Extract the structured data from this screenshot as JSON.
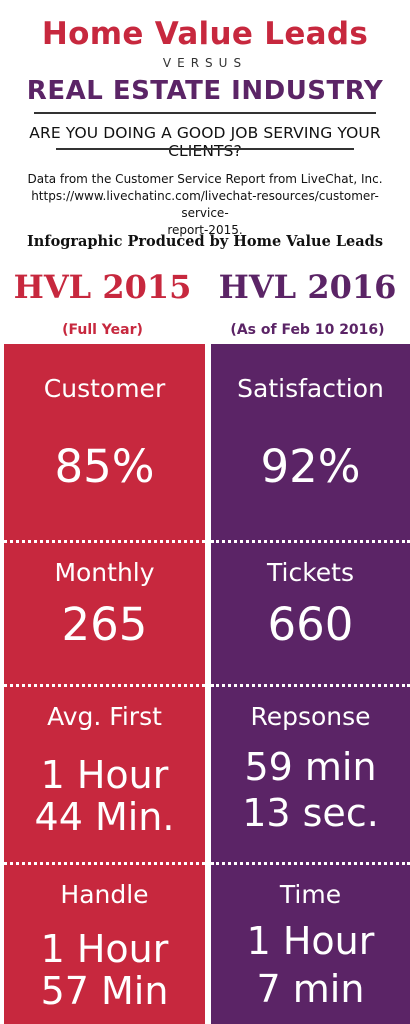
{
  "header": {
    "title": "Home Value Leads",
    "versus": "VERSUS",
    "subtitle": "REAL ESTATE INDUSTRY",
    "question": "ARE YOU DOING A GOOD JOB SERVING YOUR CLIENTS?",
    "source_line1": "Data from the Customer Service Report from LiveChat, Inc.",
    "source_line2": "https://www.livechatinc.com/livechat-resources/customer-service-",
    "source_line3": "report-2015.",
    "producer": "Infographic Produced by Home Value Leads"
  },
  "colors": {
    "red": "#c7283e",
    "purple": "#5b2466"
  },
  "columns": {
    "left": {
      "title": "HVL 2015",
      "subtitle": "(Full Year)"
    },
    "right": {
      "title": "HVL 2016",
      "subtitle": "(As of Feb 10 2016)"
    }
  },
  "rows": [
    {
      "left_label": "Customer",
      "right_label": "Satisfaction",
      "left_value": "85%",
      "right_value": "92%"
    },
    {
      "left_label": "Monthly",
      "right_label": "Tickets",
      "left_value": "265",
      "right_value": "660"
    },
    {
      "left_label": "Avg. First",
      "right_label": "Repsonse",
      "left_value_1": "1 Hour",
      "left_value_2": "44 Min.",
      "right_value_1": "59 min",
      "right_value_2": "13 sec."
    },
    {
      "left_label": "Handle",
      "right_label": "Time",
      "left_value_1": "1 Hour",
      "left_value_2": "57 Min",
      "right_value_1": "1 Hour",
      "right_value_2": "7 min"
    }
  ]
}
